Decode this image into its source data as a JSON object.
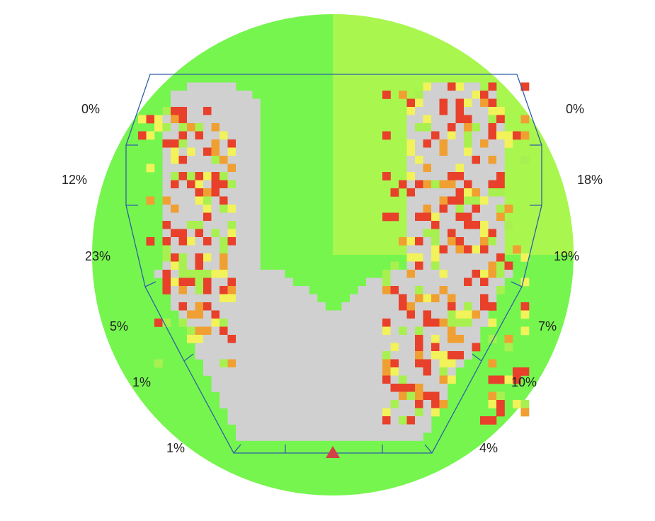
{
  "left_labels": [
    "0%",
    "12%",
    "23%",
    "5%",
    "1%",
    "1%"
  ],
  "right_labels": [
    "0%",
    "18%",
    "19%",
    "7%",
    "10%",
    "4%"
  ]
}
